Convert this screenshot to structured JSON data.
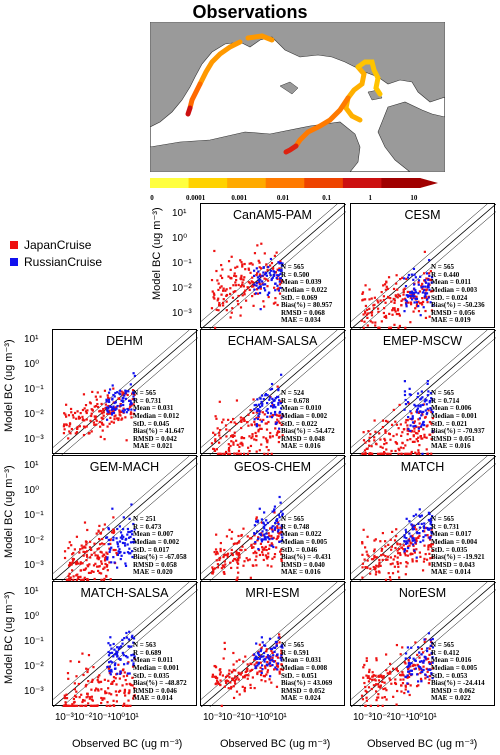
{
  "map": {
    "title": "Observations",
    "colorbar_ticks": [
      "0",
      "0.0001",
      "0.001",
      "0.01",
      "0.1",
      "1",
      "10"
    ],
    "colorbar_colors": [
      "#ffff40",
      "#ffd200",
      "#ffaa00",
      "#ff7a00",
      "#ee4400",
      "#cc1010",
      "#a00000"
    ]
  },
  "legend": {
    "items": [
      {
        "label": "JapanCruise",
        "color": "#ee1111"
      },
      {
        "label": "RussianCruise",
        "color": "#1111ee"
      }
    ]
  },
  "axes": {
    "ylabel": "Model BC (ug m⁻³)",
    "xlabel": "Observed BC (ug m⁻³)",
    "y_ticks": [
      "10¹",
      "10⁰",
      "10⁻¹",
      "10⁻²",
      "10⁻³"
    ],
    "x_ticks": [
      "10⁻³",
      "10⁻²",
      "10⁻¹",
      "10⁰",
      "10¹"
    ]
  },
  "chart_data": [
    {
      "type": "scatter",
      "title": "CanAM5-PAM",
      "xscale": "log",
      "yscale": "log",
      "xlim": [
        0.0003,
        30
      ],
      "ylim": [
        0.0003,
        30
      ],
      "stats": [
        "N = 565",
        "R = 0.500",
        "Mean = 0.039",
        "Median = 0.022",
        "StD. = 0.069",
        "Bias(%) = 80.957",
        "RMSD = 0.068",
        "MAE = 0.034"
      ],
      "series": [
        {
          "name": "JapanCruise",
          "cloud": {
            "x_range": [
              0.0007,
              0.2
            ],
            "y_center": 0.02,
            "spread": 0.6
          }
        },
        {
          "name": "RussianCruise",
          "cloud": {
            "x_range": [
              0.02,
              0.2
            ],
            "y_center": 0.03,
            "spread": 0.4
          }
        }
      ]
    },
    {
      "type": "scatter",
      "title": "CESM",
      "xscale": "log",
      "yscale": "log",
      "xlim": [
        0.0003,
        30
      ],
      "ylim": [
        0.0003,
        30
      ],
      "stats": [
        "N = 565",
        "R = 0.440",
        "Mean = 0.011",
        "Median = 0.003",
        "StD. = 0.024",
        "Bias(%) = -50.236",
        "RMSD = 0.056",
        "MAE = 0.019"
      ],
      "series": [
        {
          "name": "JapanCruise",
          "cloud": {
            "x_range": [
              0.0007,
              0.2
            ],
            "y_center": 0.004,
            "spread": 0.6
          }
        },
        {
          "name": "RussianCruise",
          "cloud": {
            "x_range": [
              0.02,
              0.2
            ],
            "y_center": 0.01,
            "spread": 0.4
          }
        }
      ]
    },
    {
      "type": "scatter",
      "title": "DEHM",
      "xscale": "log",
      "yscale": "log",
      "xlim": [
        0.0003,
        30
      ],
      "ylim": [
        0.0003,
        30
      ],
      "stats": [
        "N = 565",
        "R = 0.731",
        "Mean = 0.031",
        "Median = 0.012",
        "StD. = 0.045",
        "Bias(%) = 41.647",
        "RMSD = 0.042",
        "MAE = 0.021"
      ],
      "series": [
        {
          "name": "JapanCruise",
          "cloud": {
            "x_range": [
              0.0007,
              0.2
            ],
            "y_center": 0.012,
            "spread": 0.4
          }
        },
        {
          "name": "RussianCruise",
          "cloud": {
            "x_range": [
              0.02,
              0.2
            ],
            "y_center": 0.05,
            "spread": 0.35
          }
        }
      ]
    },
    {
      "type": "scatter",
      "title": "ECHAM-SALSA",
      "xscale": "log",
      "yscale": "log",
      "xlim": [
        0.0003,
        30
      ],
      "ylim": [
        0.0003,
        30
      ],
      "stats": [
        "N = 524",
        "R = 0.678",
        "Mean = 0.010",
        "Median = 0.002",
        "StD. = 0.022",
        "Bias(%) = -54.472",
        "RMSD = 0.048",
        "MAE = 0.016"
      ],
      "series": [
        {
          "name": "JapanCruise",
          "cloud": {
            "x_range": [
              0.0007,
              0.2
            ],
            "y_center": 0.002,
            "spread": 0.6
          }
        },
        {
          "name": "RussianCruise",
          "cloud": {
            "x_range": [
              0.02,
              0.2
            ],
            "y_center": 0.02,
            "spread": 0.4
          }
        }
      ]
    },
    {
      "type": "scatter",
      "title": "EMEP-MSCW",
      "xscale": "log",
      "yscale": "log",
      "xlim": [
        0.0003,
        30
      ],
      "ylim": [
        0.0003,
        30
      ],
      "stats": [
        "N = 565",
        "R = 0.714",
        "Mean = 0.006",
        "Median = 0.001",
        "StD. = 0.021",
        "Bias(%) = -70.937",
        "RMSD = 0.051",
        "MAE = 0.016"
      ],
      "series": [
        {
          "name": "JapanCruise",
          "cloud": {
            "x_range": [
              0.0007,
              0.2
            ],
            "y_center": 0.0012,
            "spread": 0.55
          }
        },
        {
          "name": "RussianCruise",
          "cloud": {
            "x_range": [
              0.02,
              0.2
            ],
            "y_center": 0.02,
            "spread": 0.45
          }
        }
      ]
    },
    {
      "type": "scatter",
      "title": "GEM-MACH",
      "xscale": "log",
      "yscale": "log",
      "xlim": [
        0.0003,
        30
      ],
      "ylim": [
        0.0003,
        30
      ],
      "stats": [
        "N = 251",
        "R = 0.473",
        "Mean = 0.007",
        "Median = 0.002",
        "StD. = 0.017",
        "Bias(%) = -67.058",
        "RMSD = 0.058",
        "MAE = 0.020"
      ],
      "series": [
        {
          "name": "JapanCruise",
          "cloud": {
            "x_range": [
              0.0007,
              0.05
            ],
            "y_center": 0.002,
            "spread": 0.55
          }
        },
        {
          "name": "RussianCruise",
          "cloud": {
            "x_range": [
              0.02,
              0.2
            ],
            "y_center": 0.01,
            "spread": 0.45
          }
        }
      ]
    },
    {
      "type": "scatter",
      "title": "GEOS-CHEM",
      "xscale": "log",
      "yscale": "log",
      "xlim": [
        0.0003,
        30
      ],
      "ylim": [
        0.0003,
        30
      ],
      "stats": [
        "N = 565",
        "R = 0.748",
        "Mean = 0.022",
        "Median = 0.005",
        "StD. = 0.046",
        "Bias(%) = -0.431",
        "RMSD = 0.040",
        "MAE = 0.016"
      ],
      "series": [
        {
          "name": "JapanCruise",
          "cloud": {
            "x_range": [
              0.0007,
              0.2
            ],
            "y_center": 0.005,
            "spread": 0.5
          }
        },
        {
          "name": "RussianCruise",
          "cloud": {
            "x_range": [
              0.02,
              0.2
            ],
            "y_center": 0.04,
            "spread": 0.4
          }
        }
      ]
    },
    {
      "type": "scatter",
      "title": "MATCH",
      "xscale": "log",
      "yscale": "log",
      "xlim": [
        0.0003,
        30
      ],
      "ylim": [
        0.0003,
        30
      ],
      "stats": [
        "N = 565",
        "R = 0.731",
        "Mean = 0.017",
        "Median = 0.004",
        "StD. = 0.035",
        "Bias(%) = -19.921",
        "RMSD = 0.043",
        "MAE = 0.014"
      ],
      "series": [
        {
          "name": "JapanCruise",
          "cloud": {
            "x_range": [
              0.0007,
              0.2
            ],
            "y_center": 0.004,
            "spread": 0.5
          }
        },
        {
          "name": "RussianCruise",
          "cloud": {
            "x_range": [
              0.02,
              0.2
            ],
            "y_center": 0.03,
            "spread": 0.4
          }
        }
      ]
    },
    {
      "type": "scatter",
      "title": "MATCH-SALSA",
      "xscale": "log",
      "yscale": "log",
      "xlim": [
        0.0003,
        30
      ],
      "ylim": [
        0.0003,
        30
      ],
      "stats": [
        "N = 563",
        "R = 0.689",
        "Mean = 0.011",
        "Median = 0.001",
        "StD. = 0.035",
        "Bias(%) = -48.872",
        "RMSD = 0.046",
        "MAE = 0.014"
      ],
      "series": [
        {
          "name": "JapanCruise",
          "cloud": {
            "x_range": [
              0.0007,
              0.2
            ],
            "y_center": 0.0012,
            "spread": 0.6
          }
        },
        {
          "name": "RussianCruise",
          "cloud": {
            "x_range": [
              0.02,
              0.2
            ],
            "y_center": 0.03,
            "spread": 0.45
          }
        }
      ]
    },
    {
      "type": "scatter",
      "title": "MRI-ESM",
      "xscale": "log",
      "yscale": "log",
      "xlim": [
        0.0003,
        30
      ],
      "ylim": [
        0.0003,
        30
      ],
      "stats": [
        "N = 565",
        "R = 0.591",
        "Mean = 0.031",
        "Median = 0.008",
        "StD. = 0.051",
        "Bias(%) = 43.069",
        "RMSD = 0.052",
        "MAE = 0.024"
      ],
      "series": [
        {
          "name": "JapanCruise",
          "cloud": {
            "x_range": [
              0.0007,
              0.2
            ],
            "y_center": 0.008,
            "spread": 0.4
          }
        },
        {
          "name": "RussianCruise",
          "cloud": {
            "x_range": [
              0.02,
              0.2
            ],
            "y_center": 0.04,
            "spread": 0.35
          }
        }
      ]
    },
    {
      "type": "scatter",
      "title": "NorESM",
      "xscale": "log",
      "yscale": "log",
      "xlim": [
        0.0003,
        30
      ],
      "ylim": [
        0.0003,
        30
      ],
      "stats": [
        "N = 565",
        "R = 0.412",
        "Mean = 0.016",
        "Median = 0.005",
        "StD. = 0.053",
        "Bias(%) = -24.414",
        "RMSD = 0.062",
        "MAE = 0.022"
      ],
      "series": [
        {
          "name": "JapanCruise",
          "cloud": {
            "x_range": [
              0.0007,
              0.2
            ],
            "y_center": 0.005,
            "spread": 0.5
          }
        },
        {
          "name": "RussianCruise",
          "cloud": {
            "x_range": [
              0.02,
              0.2
            ],
            "y_center": 0.02,
            "spread": 0.45
          }
        }
      ]
    }
  ]
}
